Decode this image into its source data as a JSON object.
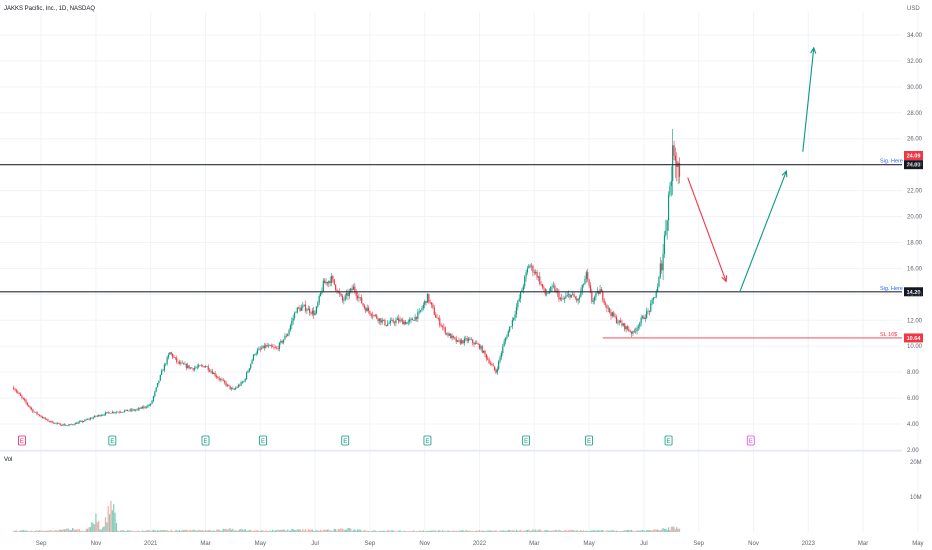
{
  "chart_data": {
    "type": "candlestick",
    "title": "JAKKS Pacific, Inc., 1D, NASDAQ",
    "currency": "USD",
    "y_ticks": [
      "34.00",
      "32.00",
      "30.00",
      "28.00",
      "26.00",
      "24.00",
      "22.00",
      "20.00",
      "18.00",
      "16.00",
      "14.00",
      "12.00",
      "10.00",
      "8.00",
      "6.00",
      "4.00",
      "2.00"
    ],
    "y_range": [
      2,
      35
    ],
    "x_ticks": [
      {
        "label": "Sep",
        "month": 1
      },
      {
        "label": "Nov",
        "month": 3
      },
      {
        "label": "2021",
        "month": 5
      },
      {
        "label": "Mar",
        "month": 7
      },
      {
        "label": "May",
        "month": 9
      },
      {
        "label": "Jul",
        "month": 11
      },
      {
        "label": "Sep",
        "month": 13
      },
      {
        "label": "Nov",
        "month": 15
      },
      {
        "label": "2022",
        "month": 17
      },
      {
        "label": "Mar",
        "month": 19
      },
      {
        "label": "May",
        "month": 21
      },
      {
        "label": "Jul",
        "month": 23
      },
      {
        "label": "Sep",
        "month": 25
      },
      {
        "label": "Nov",
        "month": 27
      },
      {
        "label": "2023",
        "month": 29
      },
      {
        "label": "Mar",
        "month": 31
      },
      {
        "label": "May",
        "month": 33
      }
    ],
    "price_path": [
      [
        0,
        6.8
      ],
      [
        0.3,
        6.0
      ],
      [
        0.7,
        5.0
      ],
      [
        1.2,
        4.3
      ],
      [
        1.6,
        4.0
      ],
      [
        2.0,
        3.9
      ],
      [
        2.5,
        4.2
      ],
      [
        3.0,
        4.6
      ],
      [
        3.5,
        4.9
      ],
      [
        4.0,
        5.0
      ],
      [
        4.5,
        5.1
      ],
      [
        5.0,
        5.5
      ],
      [
        5.4,
        8.0
      ],
      [
        5.7,
        9.5
      ],
      [
        6.0,
        8.7
      ],
      [
        6.5,
        8.3
      ],
      [
        7.0,
        8.5
      ],
      [
        7.5,
        7.5
      ],
      [
        8.0,
        6.6
      ],
      [
        8.4,
        7.3
      ],
      [
        8.8,
        9.5
      ],
      [
        9.2,
        10.0
      ],
      [
        9.6,
        9.8
      ],
      [
        10.0,
        11.0
      ],
      [
        10.3,
        12.8
      ],
      [
        10.6,
        13.0
      ],
      [
        11.0,
        12.5
      ],
      [
        11.3,
        14.8
      ],
      [
        11.6,
        15.2
      ],
      [
        12.0,
        13.5
      ],
      [
        12.4,
        14.5
      ],
      [
        12.8,
        13.0
      ],
      [
        13.2,
        12.3
      ],
      [
        13.6,
        11.7
      ],
      [
        14.0,
        12.0
      ],
      [
        14.4,
        11.8
      ],
      [
        14.8,
        12.5
      ],
      [
        15.1,
        13.8
      ],
      [
        15.4,
        12.3
      ],
      [
        15.8,
        11.0
      ],
      [
        16.2,
        10.3
      ],
      [
        16.6,
        10.5
      ],
      [
        17.0,
        10.0
      ],
      [
        17.3,
        9.0
      ],
      [
        17.6,
        8.0
      ],
      [
        17.9,
        10.3
      ],
      [
        18.2,
        12.0
      ],
      [
        18.5,
        14.0
      ],
      [
        18.8,
        16.3
      ],
      [
        19.1,
        15.5
      ],
      [
        19.4,
        14.0
      ],
      [
        19.7,
        14.5
      ],
      [
        20.0,
        13.5
      ],
      [
        20.3,
        14.0
      ],
      [
        20.6,
        13.5
      ],
      [
        20.9,
        15.5
      ],
      [
        21.1,
        13.5
      ],
      [
        21.4,
        14.3
      ],
      [
        21.7,
        12.8
      ],
      [
        22.0,
        12.0
      ],
      [
        22.3,
        11.5
      ],
      [
        22.6,
        11.0
      ],
      [
        22.9,
        12.0
      ],
      [
        23.2,
        12.8
      ],
      [
        23.5,
        14.5
      ],
      [
        23.7,
        17.3
      ],
      [
        23.9,
        21.5
      ],
      [
        24.1,
        25.5
      ],
      [
        24.3,
        23.5
      ]
    ],
    "volume_path": [
      [
        0,
        0.4
      ],
      [
        1.5,
        0.5
      ],
      [
        2.3,
        1.0
      ],
      [
        2.6,
        0.3
      ],
      [
        3.0,
        4.5
      ],
      [
        3.2,
        0.5
      ],
      [
        3.6,
        9.0
      ],
      [
        3.8,
        0.5
      ],
      [
        4.5,
        0.3
      ],
      [
        5.5,
        0.6
      ],
      [
        7.0,
        0.5
      ],
      [
        8.0,
        0.9
      ],
      [
        9.0,
        0.4
      ],
      [
        10.0,
        0.7
      ],
      [
        11.5,
        0.6
      ],
      [
        12.0,
        1.0
      ],
      [
        13.0,
        0.5
      ],
      [
        14.0,
        0.4
      ],
      [
        16.0,
        0.4
      ],
      [
        17.5,
        0.5
      ],
      [
        19.0,
        0.6
      ],
      [
        20.5,
        0.5
      ],
      [
        22.0,
        0.4
      ],
      [
        23.5,
        0.6
      ],
      [
        24.1,
        1.5
      ],
      [
        24.3,
        0.8
      ]
    ],
    "volume_ticks": [
      "20M",
      "10M"
    ],
    "volume_range": [
      0,
      22
    ],
    "volume_label": "Vol",
    "levels": [
      {
        "id": "sig-upper",
        "price": 24.0,
        "color": "#2a2e39",
        "label": "Sig. Here",
        "box": "24.00",
        "start_month": -1,
        "label_color": "#2962ff"
      },
      {
        "id": "sig-lower",
        "price": 14.2,
        "color": "#2a2e39",
        "label": "Sig. Here",
        "box": "14.20",
        "start_month": -1,
        "label_color": "#2962ff"
      },
      {
        "id": "stop-loss",
        "price": 10.64,
        "color": "#f23645",
        "label": "SL 10$",
        "box": "10.64",
        "start_month": 21.5,
        "label_color": "#f23645"
      }
    ],
    "current_price": {
      "value": "24.09",
      "color": "#f23645"
    },
    "arrows": [
      {
        "id": "down-arrow",
        "from": [
          24.6,
          23.0
        ],
        "to": [
          26.0,
          15.0
        ],
        "color": "#f23645"
      },
      {
        "id": "up-arrow-1",
        "from": [
          26.5,
          14.2
        ],
        "to": [
          28.2,
          23.5
        ],
        "color": "#089981"
      },
      {
        "id": "up-arrow-2",
        "from": [
          28.8,
          25.0
        ],
        "to": [
          29.2,
          33.0
        ],
        "color": "#089981"
      }
    ],
    "earnings": [
      {
        "month": 0.3,
        "color": "#e91e63"
      },
      {
        "month": 3.6,
        "color": "#089981"
      },
      {
        "month": 7.0,
        "color": "#089981"
      },
      {
        "month": 9.1,
        "color": "#089981"
      },
      {
        "month": 12.1,
        "color": "#089981"
      },
      {
        "month": 15.1,
        "color": "#089981"
      },
      {
        "month": 18.7,
        "color": "#089981"
      },
      {
        "month": 21.0,
        "color": "#089981"
      },
      {
        "month": 23.9,
        "color": "#089981"
      },
      {
        "month": 26.9,
        "color": "#e040fb"
      }
    ],
    "earnings_glyph": "E",
    "colors": {
      "up": "#089981",
      "down": "#f23645",
      "up_vol": "#7fcdbd",
      "down_vol": "#f7a9a7"
    }
  }
}
